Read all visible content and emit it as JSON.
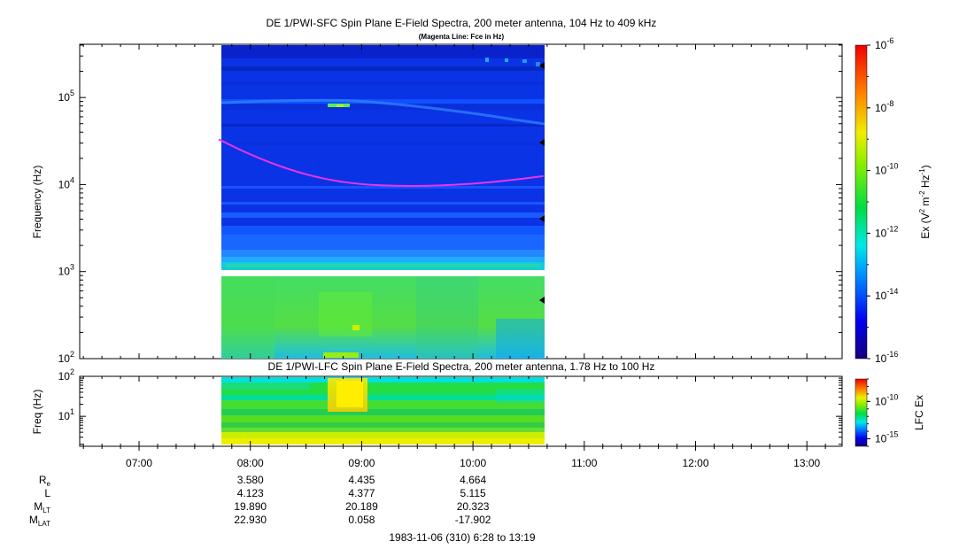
{
  "chart_data": [
    {
      "type": "heatmap",
      "title": "DE 1/PWI-SFC  Spin Plane E-Field Spectra, 200 meter antenna, 104 Hz to 409 kHz",
      "subtitle": "(Magenta Line: Fce in Hz)",
      "ylabel": "Frequency (Hz)",
      "yscale": "log",
      "ylim": [
        100,
        409000
      ],
      "ytick_labels": [
        {
          "base": "10",
          "exp": "2",
          "value": 100
        },
        {
          "base": "10",
          "exp": "3",
          "value": 1000
        },
        {
          "base": "10",
          "exp": "4",
          "value": 10000
        },
        {
          "base": "10",
          "exp": "5",
          "value": 100000
        }
      ],
      "xlim": [
        "06:28",
        "13:19"
      ],
      "data_coverage": [
        "07:43",
        "10:38"
      ],
      "colorbar": {
        "label": "Ex (V",
        "label_sup1": "2",
        "label_mid": " m",
        "label_sup2": "-2",
        "label_mid2": " Hz",
        "label_sup3": "-1",
        "label_end": ")",
        "scale": "log",
        "range": [
          1e-16,
          1e-06
        ],
        "tick_labels": [
          {
            "base": "10",
            "exp": "-6",
            "value": 1e-06
          },
          {
            "base": "10",
            "exp": "-8",
            "value": 1e-08
          },
          {
            "base": "10",
            "exp": "-10",
            "value": 1e-10
          },
          {
            "base": "10",
            "exp": "-12",
            "value": 1e-12
          },
          {
            "base": "10",
            "exp": "-14",
            "value": 1e-14
          },
          {
            "base": "10",
            "exp": "-16",
            "value": 1e-16
          }
        ]
      },
      "fce_line": {
        "color": "#ee33ee",
        "points": [
          {
            "t": "07:43",
            "f": 33000
          },
          {
            "t": "08:00",
            "f": 22000
          },
          {
            "t": "08:20",
            "f": 15000
          },
          {
            "t": "08:40",
            "f": 11500
          },
          {
            "t": "09:00",
            "f": 10000
          },
          {
            "t": "09:20",
            "f": 9600
          },
          {
            "t": "09:40",
            "f": 9700
          },
          {
            "t": "10:00",
            "f": 10200
          },
          {
            "t": "10:20",
            "f": 11200
          },
          {
            "t": "10:38",
            "f": 12500
          }
        ]
      }
    },
    {
      "type": "heatmap",
      "title": "DE 1/PWI-LFC  Spin Plane E-Field Spectra, 200 meter antenna, 1.78 Hz to 100 Hz",
      "ylabel": "Freq (Hz)",
      "yscale": "log",
      "ylim": [
        1.78,
        100
      ],
      "ytick_labels": [
        {
          "base": "10",
          "exp": "1",
          "value": 10
        },
        {
          "base": "10",
          "exp": "2",
          "value": 100
        }
      ],
      "xlim": [
        "06:28",
        "13:19"
      ],
      "data_coverage": [
        "07:43",
        "10:38"
      ],
      "colorbar": {
        "label": "LFC Ex",
        "scale": "log",
        "range": [
          1e-16,
          1e-07
        ],
        "tick_labels": [
          {
            "base": "10",
            "exp": "-10",
            "value": 1e-10
          },
          {
            "base": "10",
            "exp": "-15",
            "value": 1e-15
          }
        ]
      }
    }
  ],
  "time_axis": {
    "ticks": [
      "07:00",
      "08:00",
      "09:00",
      "10:00",
      "11:00",
      "12:00",
      "13:00"
    ],
    "start": "06:28",
    "end": "13:19"
  },
  "ephemeris": {
    "columns": [
      "08:00",
      "09:00",
      "10:00"
    ],
    "rows": [
      {
        "label": "R",
        "sub": "e",
        "values": [
          "3.580",
          "4.435",
          "4.664"
        ]
      },
      {
        "label": "L",
        "sub": "",
        "values": [
          "4.123",
          "4.377",
          "5.115"
        ]
      },
      {
        "label": "M",
        "sub": "LT",
        "values": [
          "19.890",
          "20.189",
          "20.323"
        ]
      },
      {
        "label": "M",
        "sub": "LAT",
        "values": [
          "22.930",
          "0.058",
          "-17.902"
        ]
      }
    ]
  },
  "footer": "1983-11-06 (310) 6:28 to 13:19"
}
